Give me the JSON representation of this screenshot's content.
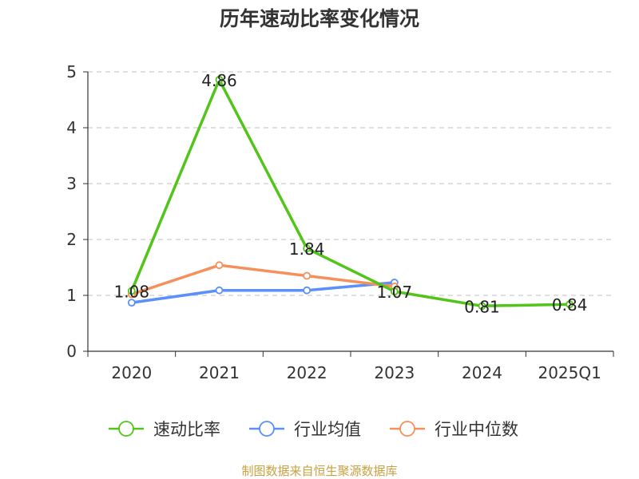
{
  "chart_data": {
    "type": "line",
    "title": "历年速动比率变化情况",
    "categories": [
      "2020",
      "2021",
      "2022",
      "2023",
      "2024",
      "2025Q1"
    ],
    "ylim": [
      0,
      5
    ],
    "yticks": [
      "0",
      "1",
      "2",
      "3",
      "4",
      "5"
    ],
    "grid": "horizontal dashed",
    "legend_position": "bottom",
    "series": [
      {
        "name": "速动比率",
        "color": "#52c41a",
        "values": [
          1.08,
          4.86,
          1.84,
          1.07,
          0.81,
          0.84
        ],
        "labels": [
          "1.08",
          "4.86",
          "1.84",
          "1.07",
          "0.81",
          "0.84"
        ]
      },
      {
        "name": "行业均值",
        "color": "#5b8ff9",
        "values": [
          0.87,
          1.09,
          1.09,
          1.23,
          null,
          null
        ]
      },
      {
        "name": "行业中位数",
        "color": "#f6905a",
        "values": [
          1.02,
          1.54,
          1.35,
          1.16,
          null,
          null
        ]
      }
    ],
    "source": "制图数据来自恒生聚源数据库"
  }
}
